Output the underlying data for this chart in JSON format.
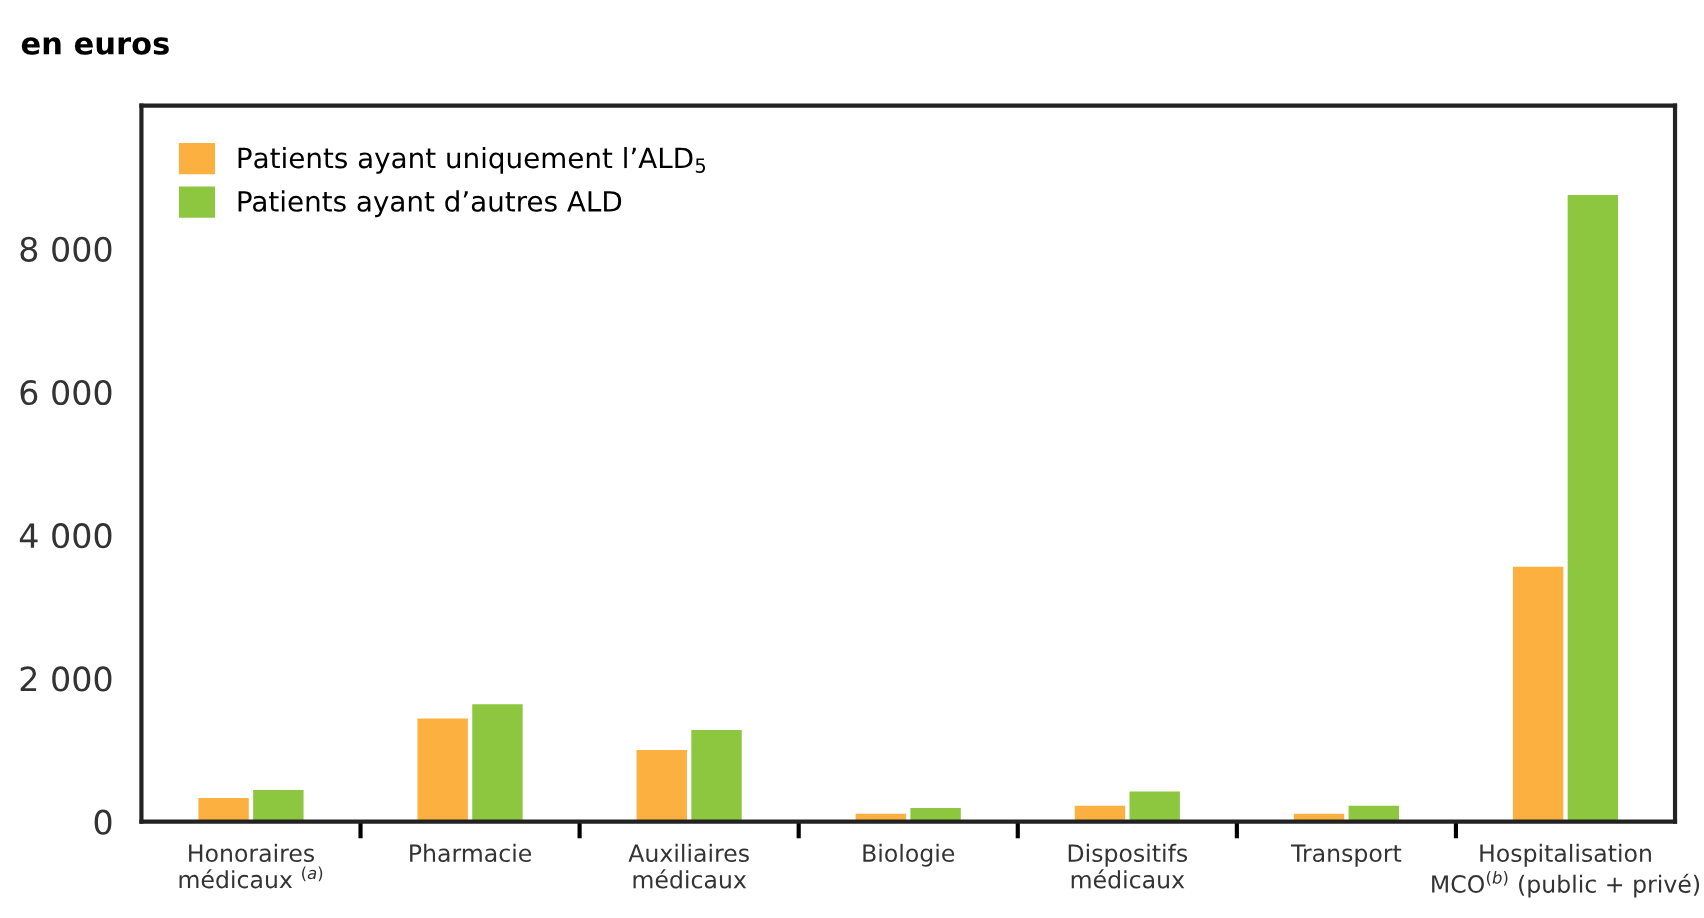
{
  "chart_data": {
    "type": "bar",
    "ylabel": "en euros",
    "categories": [
      "Honoraires\nmédicaux $^{(a)}$",
      "Pharmacie",
      "Auxiliaires\nmédicaux",
      "Biologie",
      "Dispositifs\nmédicaux",
      "Transport",
      "Hospitalisation\nMCO$^{(b)}$ (public + privé)"
    ],
    "series": [
      {
        "name": "Patients ayant uniquement l’ALD$_{5}$",
        "color": "#fbb040",
        "values": [
          330,
          1440,
          1000,
          110,
          220,
          110,
          3560
        ]
      },
      {
        "name": "Patients ayant d’autres ALD",
        "color": "#8dc63f",
        "values": [
          440,
          1640,
          1280,
          190,
          420,
          220,
          8750
        ]
      }
    ],
    "ylim": [
      0,
      10000
    ],
    "yticks": [
      0,
      {
        "value": 2000,
        "label": "2 000"
      },
      {
        "value": 4000,
        "label": "4 000"
      },
      {
        "value": 6000,
        "label": "6 000"
      },
      {
        "value": 8000,
        "label": "8 000"
      }
    ],
    "grid": false,
    "legend": "top left"
  }
}
